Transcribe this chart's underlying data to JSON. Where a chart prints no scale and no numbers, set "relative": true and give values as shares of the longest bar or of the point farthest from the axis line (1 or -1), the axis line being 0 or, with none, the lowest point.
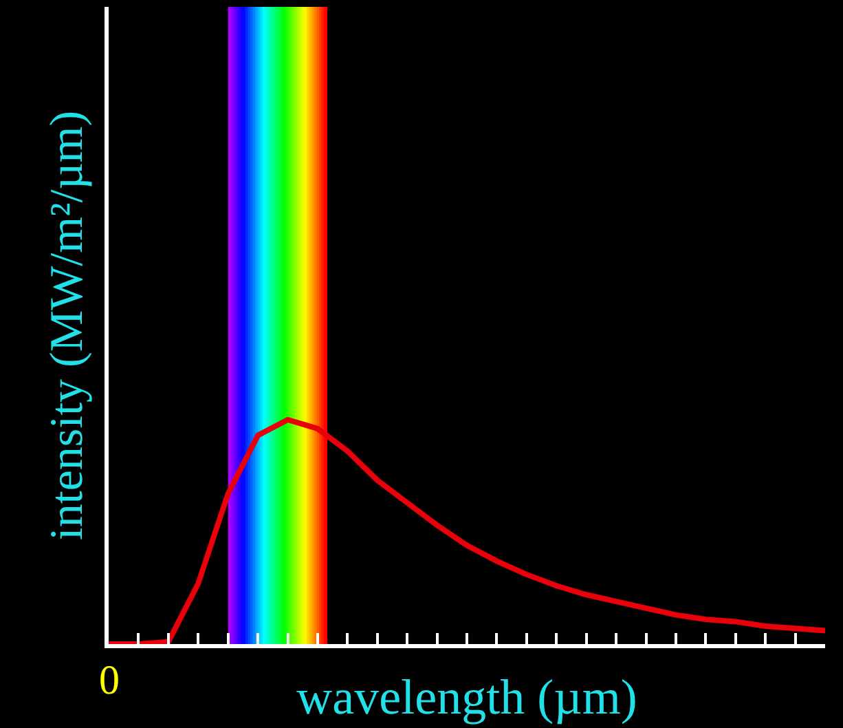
{
  "chart_data": {
    "type": "line",
    "relative": true,
    "xlabel": "wavelength (µm)",
    "ylabel": "intensity (MW/m²/µm)",
    "annotations": [
      "0"
    ],
    "categories": [
      null,
      null,
      null,
      null,
      null,
      null,
      null,
      null,
      null,
      null,
      null,
      null,
      null,
      null,
      null,
      null,
      null,
      null,
      null,
      null,
      null,
      null,
      null,
      null,
      null
    ],
    "grid": false,
    "marker": "none",
    "line_style": "solid",
    "series": [
      {
        "color": "#e8000b",
        "values": [
          0,
          0,
          0.01,
          0.27,
          0.67,
          0.93,
          1.0,
          0.96,
          0.86,
          0.73,
          0.63,
          0.53,
          0.44,
          0.37,
          0.31,
          0.26,
          0.22,
          0.19,
          0.16,
          0.13,
          0.11,
          0.1,
          0.08,
          0.07,
          0.06
        ]
      }
    ]
  }
}
